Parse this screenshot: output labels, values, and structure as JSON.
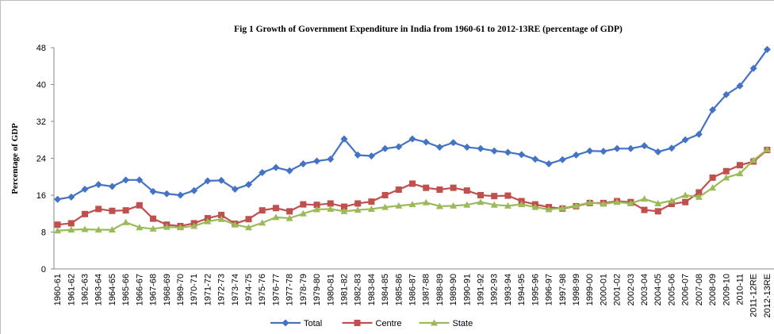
{
  "chart_data": {
    "type": "line",
    "title": "Fig 1 Growth of Government Expenditure in India from 1960-61 to 2012-13RE (percentage of GDP)",
    "y_label": "Percentage of GDP",
    "categories": [
      "1960-61",
      "1961-62",
      "1962-63",
      "1963-64",
      "1964-65",
      "1965-66",
      "1966-67",
      "1967-68",
      "1968-69",
      "1969-70",
      "1970-71",
      "1971-72",
      "1972-73",
      "1973-74",
      "1974-75",
      "1975-76",
      "1976-77",
      "1977-78",
      "1978-79",
      "1979-80",
      "1980-81",
      "1981-82",
      "1982-83",
      "1983-84",
      "1984-85",
      "1985-86",
      "1986-87",
      "1987-88",
      "1988-89",
      "1989-90",
      "1990-91",
      "1991-92",
      "1992-93",
      "1993-94",
      "1994-95",
      "1995-96",
      "1996-97",
      "1997-98",
      "1998-99",
      "1999-00",
      "2000-01",
      "2001-02",
      "2002-03",
      "2003-04",
      "2004-05",
      "2005-06",
      "2006-07",
      "2007-08",
      "2008-09",
      "2009-10",
      "2010-11",
      "2011-12RE",
      "2012-13RE"
    ],
    "series": [
      {
        "name": "Total",
        "color": "#4472c4",
        "marker": "diamond",
        "values": [
          15.1,
          15.6,
          17.3,
          18.3,
          17.9,
          19.3,
          19.3,
          16.8,
          16.3,
          16.0,
          17.0,
          19.1,
          19.2,
          17.3,
          18.3,
          20.9,
          22.0,
          21.3,
          22.8,
          23.4,
          23.8,
          28.2,
          24.7,
          24.5,
          26.1,
          26.5,
          28.2,
          27.5,
          26.4,
          27.4,
          26.4,
          26.1,
          25.6,
          25.3,
          24.8,
          23.8,
          22.8,
          23.7,
          24.7,
          25.6,
          25.5,
          26.1,
          26.1,
          26.7,
          25.4,
          26.2,
          28.0,
          29.2,
          34.5,
          37.8,
          39.7,
          43.5,
          47.6
        ]
      },
      {
        "name": "Centre",
        "color": "#c0504d",
        "marker": "square",
        "values": [
          9.6,
          9.9,
          11.9,
          13.0,
          12.6,
          12.7,
          13.8,
          10.9,
          9.6,
          9.3,
          9.9,
          11.0,
          11.7,
          9.8,
          10.8,
          12.7,
          13.2,
          12.5,
          14.0,
          13.9,
          14.2,
          13.5,
          14.2,
          14.6,
          16.0,
          17.2,
          18.5,
          17.6,
          17.2,
          17.6,
          17.0,
          16.0,
          15.8,
          15.9,
          14.7,
          14.0,
          13.4,
          13.1,
          13.6,
          14.3,
          14.3,
          14.7,
          14.5,
          12.8,
          12.5,
          14.1,
          14.5,
          16.6,
          19.8,
          21.2,
          22.5,
          23.3,
          25.8
        ]
      },
      {
        "name": "State",
        "color": "#9bbb59",
        "marker": "triangle",
        "values": [
          8.3,
          8.5,
          8.6,
          8.5,
          8.5,
          10.1,
          9.0,
          8.7,
          9.1,
          9.0,
          9.3,
          10.3,
          10.8,
          9.6,
          9.0,
          10.0,
          11.2,
          11.0,
          12.0,
          12.9,
          13.0,
          12.5,
          12.8,
          13.0,
          13.4,
          13.7,
          14.0,
          14.4,
          13.6,
          13.7,
          13.9,
          14.5,
          13.9,
          13.7,
          14.0,
          13.4,
          12.9,
          13.2,
          13.7,
          14.4,
          14.1,
          14.5,
          14.2,
          15.2,
          14.2,
          14.8,
          16.0,
          15.6,
          17.6,
          19.8,
          20.7,
          23.6,
          25.9
        ]
      }
    ],
    "ylim": [
      0,
      48
    ],
    "yticks": [
      0,
      8,
      16,
      24,
      32,
      40,
      48
    ],
    "grid": false,
    "legend": "bottom"
  }
}
